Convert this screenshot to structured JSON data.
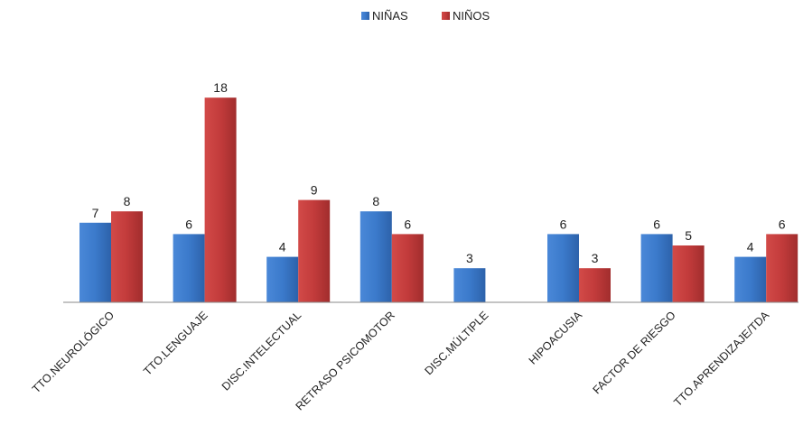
{
  "chart_data": {
    "type": "bar",
    "categories": [
      "TTO.NEUROLÓGICO",
      "TTO.LENGUAJE",
      "DISC.INTELECTUAL",
      "RETRASO PSICOMOTOR",
      "DISC.MÚLTIPLE",
      "HIPOACUSIA",
      "FACTOR DE RIESGO",
      "TTO.APRENDIZAJE/TDA"
    ],
    "series": [
      {
        "name": "NIÑAS",
        "color": "#3a78c9",
        "values": [
          7,
          6,
          4,
          8,
          3,
          6,
          6,
          4
        ]
      },
      {
        "name": "NIÑOS",
        "color": "#c23b3b",
        "values": [
          8,
          18,
          9,
          6,
          null,
          3,
          5,
          6
        ]
      }
    ],
    "title": "",
    "xlabel": "",
    "ylabel": "",
    "ylim": [
      0,
      18
    ],
    "grid": false,
    "legend_position": "top-center",
    "data_labels": true
  }
}
